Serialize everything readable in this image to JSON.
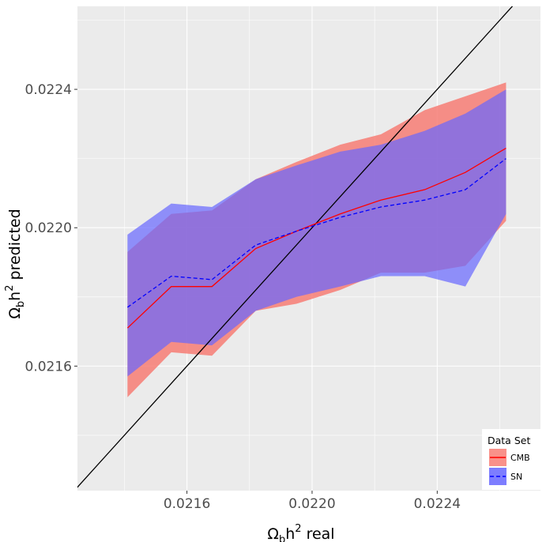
{
  "chart_data": {
    "type": "area",
    "xlabel": {
      "base": "Ω",
      "sub": "b",
      "mid": "h",
      "sup": "2",
      "tail": " real"
    },
    "ylabel": {
      "base": "Ω",
      "sub": "b",
      "mid": "h",
      "sup": "2",
      "tail": " predicted"
    },
    "xlim": [
      0.02125,
      0.02273
    ],
    "ylim": [
      0.02124,
      0.02264
    ],
    "x_ticks": [
      0.0216,
      0.022,
      0.0224
    ],
    "x_tick_labels": [
      "0.0216",
      "0.0220",
      "0.0224"
    ],
    "y_ticks": [
      0.0216,
      0.022,
      0.0224
    ],
    "y_tick_labels": [
      "0.0216",
      "0.0220",
      "0.0224"
    ],
    "grid": true,
    "legend": {
      "title": "Data Set",
      "position": "bottom-right"
    },
    "x": [
      0.02141,
      0.02155,
      0.02168,
      0.02182,
      0.02195,
      0.02209,
      0.02222,
      0.02236,
      0.02249,
      0.02262
    ],
    "series": [
      {
        "name": "CMB",
        "color": "#ff0000",
        "fill": "#f8766d",
        "line_style": "solid",
        "mean": [
          0.02171,
          0.02183,
          0.02183,
          0.02194,
          0.02199,
          0.02204,
          0.02208,
          0.02211,
          0.02216,
          0.02223
        ],
        "lower": [
          0.02151,
          0.02164,
          0.02163,
          0.02176,
          0.02178,
          0.02182,
          0.02187,
          0.02187,
          0.02189,
          0.02202
        ],
        "upper": [
          0.02193,
          0.02204,
          0.02205,
          0.02214,
          0.02219,
          0.02224,
          0.02227,
          0.02234,
          0.02238,
          0.02242
        ]
      },
      {
        "name": "SN",
        "color": "#0000ff",
        "fill": "#6666ff",
        "line_style": "dashed",
        "mean": [
          0.02177,
          0.02186,
          0.02185,
          0.02195,
          0.02199,
          0.02203,
          0.02206,
          0.02208,
          0.02211,
          0.0222
        ],
        "lower": [
          0.02157,
          0.02167,
          0.02166,
          0.02176,
          0.0218,
          0.02183,
          0.02186,
          0.02186,
          0.02183,
          0.02204
        ],
        "upper": [
          0.02198,
          0.02207,
          0.02206,
          0.02214,
          0.02218,
          0.02222,
          0.02224,
          0.02228,
          0.02233,
          0.0224
        ]
      }
    ],
    "reference_line": {
      "type": "identity",
      "color": "#000000"
    }
  }
}
